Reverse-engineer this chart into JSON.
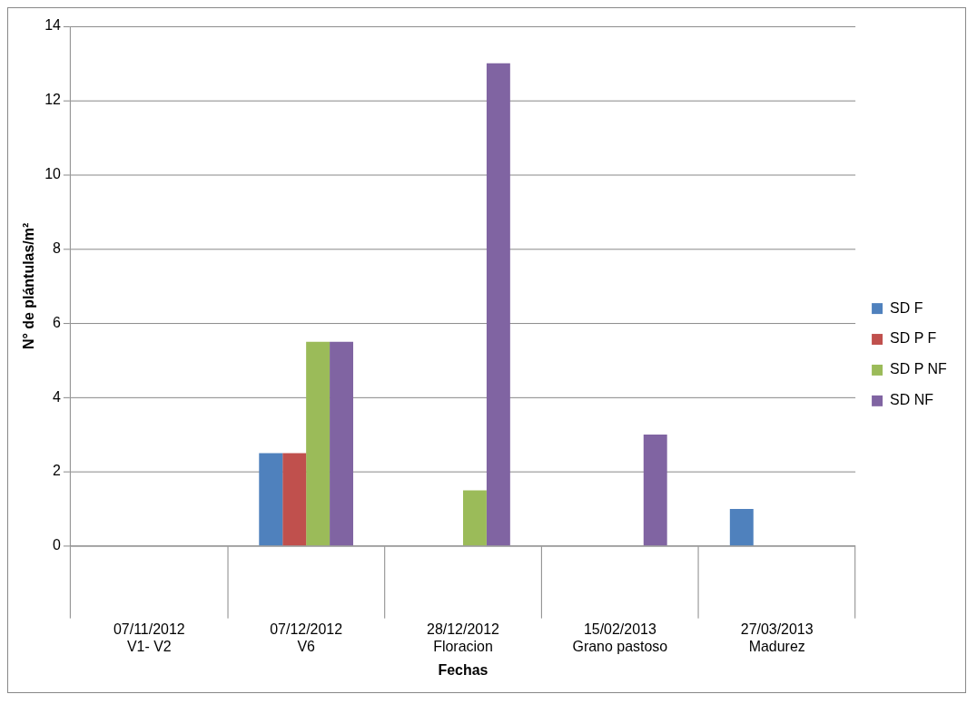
{
  "chart_data": {
    "type": "bar",
    "xlabel": "Fechas",
    "ylabel": "N° de plántulas/m²",
    "categories": [
      "07/11/2012\nV1- V2",
      "07/12/2012\nV6",
      "28/12/2012\nFloracion",
      "15/02/2013\nGrano pastoso",
      "27/03/2013\nMadurez"
    ],
    "series": [
      {
        "name": "SD F",
        "color": "#4f81bd",
        "values": [
          0,
          2.5,
          0,
          0,
          1
        ]
      },
      {
        "name": "SD P F",
        "color": "#c0504d",
        "values": [
          0,
          2.5,
          0,
          0,
          0
        ]
      },
      {
        "name": "SD P NF",
        "color": "#9bbb59",
        "values": [
          0,
          5.5,
          1.5,
          0,
          0
        ]
      },
      {
        "name": "SD NF",
        "color": "#8064a2",
        "values": [
          0,
          5.5,
          13,
          3,
          0
        ]
      }
    ],
    "ylim": [
      0,
      14
    ],
    "yticks": [
      0,
      2,
      4,
      6,
      8,
      10,
      12,
      14
    ],
    "grid": "y",
    "legend": "right"
  }
}
